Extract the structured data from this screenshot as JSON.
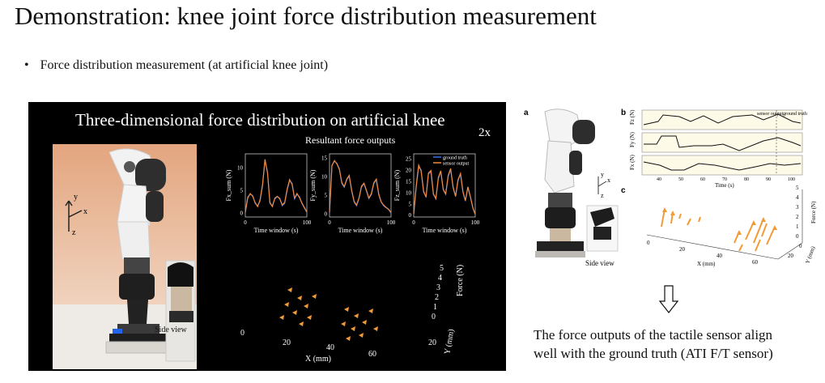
{
  "slide": {
    "title": "Demonstration: knee joint force distribution measurement",
    "bullet_symbol": "•",
    "bullet_text": "Force distribution measurement (at artificial knee joint)",
    "conclusion_lines": [
      "The force outputs of the tactile sensor align",
      "well with the ground truth (ATI F/T sensor)"
    ]
  },
  "video": {
    "title": "Three-dimensional force distribution on artificial knee",
    "speed": "2x",
    "side_view_label": "Side view",
    "axes_labels": {
      "y": "y",
      "x": "x",
      "z": "z"
    },
    "resultant_title": "Resultant force outputs",
    "legend": [
      "ground truth",
      "sensor output"
    ],
    "xlabel": "Time window (s)",
    "xticks": [
      "0",
      "100"
    ],
    "plots": [
      {
        "ylabel": "Fx_sum (N)",
        "yticks": [
          "0",
          "5",
          "10"
        ]
      },
      {
        "ylabel": "Fy_sum (N)",
        "yticks": [
          "0",
          "5",
          "10",
          "15"
        ]
      },
      {
        "ylabel": "Fz_sum (N)",
        "yticks": [
          "0",
          "5",
          "10",
          "15",
          "20",
          "25"
        ]
      }
    ],
    "scatter3d": {
      "xlabel": "X (mm)",
      "ylabel": "Y (mm)",
      "zlabel": "Force (N)",
      "xticks": [
        "0",
        "20",
        "40",
        "60"
      ],
      "yticks": [
        "20"
      ],
      "zticks": [
        "0",
        "1",
        "2",
        "3",
        "4",
        "5"
      ]
    }
  },
  "figure": {
    "panel_a": "a",
    "panel_b": "b",
    "panel_c": "c",
    "side_view_label": "Side view",
    "axes_labels": {
      "y": "y",
      "x": "x",
      "z": "z"
    },
    "b_legend": [
      "sensor output",
      "ground truth"
    ],
    "b_ylabels": [
      "Fz (N)",
      "Fy (N)",
      "Fx (N)"
    ],
    "b_xticks": [
      "40",
      "50",
      "60",
      "70",
      "80",
      "90",
      "100"
    ],
    "b_xlabel": "Time (s)",
    "c_xlabel": "X (mm)",
    "c_ylabel": "Y (mm)",
    "c_zlabel": "Force (N)",
    "c_xticks": [
      "0",
      "20",
      "40",
      "60"
    ],
    "c_yticks": [
      "20",
      "0"
    ],
    "c_zticks": [
      "0",
      "1",
      "2",
      "3",
      "4",
      "5"
    ]
  },
  "colors": {
    "ground_truth": "#3a6ff0",
    "sensor_output": "#f08a3c",
    "arrow": "#f39a38",
    "panel_bg": "#000000"
  },
  "chart_data": [
    {
      "type": "line",
      "ylabel": "Fx_sum (N)",
      "xlabel": "Time window (s)",
      "xlim": [
        0,
        100
      ],
      "ylim": [
        -1,
        13
      ],
      "x": [
        0,
        4,
        8,
        12,
        16,
        20,
        24,
        28,
        32,
        36,
        40,
        44,
        48,
        52,
        56,
        60,
        64,
        68,
        72,
        76,
        80,
        84,
        88,
        92,
        96,
        100
      ],
      "series": [
        {
          "name": "ground truth",
          "values": [
            0,
            3.5,
            4,
            3.8,
            2,
            1.5,
            2.5,
            6,
            11.5,
            9,
            2,
            1.5,
            3,
            3.5,
            3.2,
            1.5,
            2,
            5,
            7,
            6.5,
            3,
            4,
            3.5,
            2,
            1,
            0
          ]
        },
        {
          "name": "sensor output",
          "values": [
            0,
            3.2,
            4.2,
            3.6,
            2.2,
            1.3,
            2.8,
            6.2,
            11.8,
            8.8,
            2.2,
            1.3,
            3.2,
            3.6,
            3,
            1.7,
            2.2,
            5.2,
            7.3,
            6.2,
            3.2,
            4.2,
            3.3,
            2.1,
            1.1,
            0.1
          ]
        }
      ]
    },
    {
      "type": "line",
      "ylabel": "Fy_sum (N)",
      "xlabel": "Time window (s)",
      "xlim": [
        0,
        100
      ],
      "ylim": [
        -1,
        16
      ],
      "x": [
        0,
        4,
        8,
        12,
        16,
        20,
        24,
        28,
        32,
        36,
        40,
        44,
        48,
        52,
        56,
        60,
        64,
        68,
        72,
        76,
        80,
        84,
        88,
        92,
        96,
        100
      ],
      "series": [
        {
          "name": "ground truth",
          "values": [
            0,
            13,
            14,
            13.5,
            12,
            8,
            7,
            9,
            10,
            6,
            3,
            2,
            4,
            7,
            8,
            6,
            4,
            5,
            8,
            9,
            5,
            3,
            2,
            1.5,
            1,
            0
          ]
        },
        {
          "name": "sensor output",
          "values": [
            0.2,
            12.8,
            14.2,
            13.3,
            11.8,
            8.3,
            7.2,
            9.2,
            10.2,
            6.2,
            3.2,
            2.2,
            4.2,
            7.3,
            8.1,
            6.2,
            4.1,
            5.3,
            8.2,
            9.2,
            5.2,
            3.1,
            2.2,
            1.6,
            1.1,
            0.2
          ]
        }
      ]
    },
    {
      "type": "line",
      "ylabel": "Fz_sum (N)",
      "xlabel": "Time window (s)",
      "xlim": [
        0,
        100
      ],
      "ylim": [
        -1,
        27
      ],
      "x": [
        0,
        4,
        8,
        12,
        16,
        20,
        24,
        28,
        32,
        36,
        40,
        44,
        48,
        52,
        56,
        60,
        64,
        68,
        72,
        76,
        80,
        84,
        88,
        92,
        96,
        100
      ],
      "series": [
        {
          "name": "ground truth",
          "values": [
            0,
            12,
            21,
            20,
            10,
            8,
            18,
            19,
            9,
            7,
            16,
            19,
            11,
            9,
            17,
            20,
            12,
            8,
            15,
            18,
            10,
            6,
            12,
            8,
            3,
            0
          ]
        },
        {
          "name": "sensor output",
          "values": [
            0.3,
            12.5,
            22,
            19.5,
            10.5,
            7.8,
            18.5,
            19.6,
            9.3,
            7.2,
            16.5,
            19.5,
            11.2,
            9.3,
            17.4,
            20.5,
            12.4,
            8.2,
            15.5,
            18.3,
            10.3,
            6.3,
            12.4,
            8.2,
            3.2,
            0.2
          ]
        }
      ]
    }
  ]
}
